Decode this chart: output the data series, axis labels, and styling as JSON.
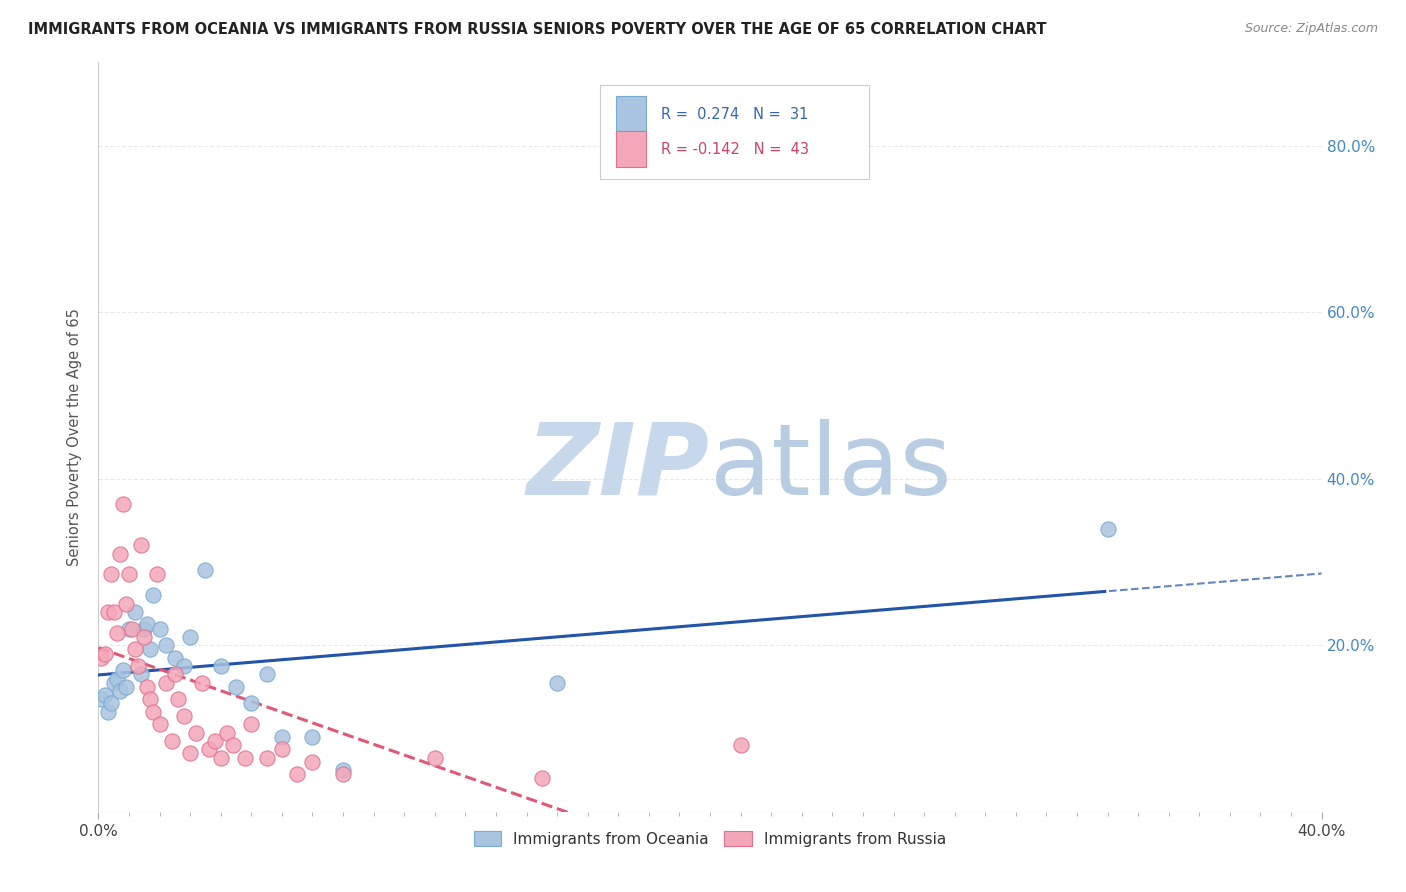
{
  "title": "IMMIGRANTS FROM OCEANIA VS IMMIGRANTS FROM RUSSIA SENIORS POVERTY OVER THE AGE OF 65 CORRELATION CHART",
  "source": "Source: ZipAtlas.com",
  "ylabel": "Seniors Poverty Over the Age of 65",
  "series": [
    {
      "name": "Immigrants from Oceania",
      "color": "#a8c4e0",
      "edge_color": "#7aaad0",
      "R": 0.274,
      "N": 31,
      "line_color": "#2255aa",
      "line_style": "-",
      "points": [
        [
          0.001,
          0.135
        ],
        [
          0.002,
          0.14
        ],
        [
          0.003,
          0.12
        ],
        [
          0.004,
          0.13
        ],
        [
          0.005,
          0.155
        ],
        [
          0.006,
          0.16
        ],
        [
          0.007,
          0.145
        ],
        [
          0.008,
          0.17
        ],
        [
          0.009,
          0.15
        ],
        [
          0.01,
          0.22
        ],
        [
          0.012,
          0.24
        ],
        [
          0.014,
          0.165
        ],
        [
          0.015,
          0.22
        ],
        [
          0.016,
          0.225
        ],
        [
          0.017,
          0.195
        ],
        [
          0.018,
          0.26
        ],
        [
          0.02,
          0.22
        ],
        [
          0.022,
          0.2
        ],
        [
          0.025,
          0.185
        ],
        [
          0.028,
          0.175
        ],
        [
          0.03,
          0.21
        ],
        [
          0.035,
          0.29
        ],
        [
          0.04,
          0.175
        ],
        [
          0.045,
          0.15
        ],
        [
          0.05,
          0.13
        ],
        [
          0.055,
          0.165
        ],
        [
          0.06,
          0.09
        ],
        [
          0.07,
          0.09
        ],
        [
          0.08,
          0.05
        ],
        [
          0.15,
          0.155
        ],
        [
          0.33,
          0.34
        ]
      ]
    },
    {
      "name": "Immigrants from Russia",
      "color": "#f4a7b9",
      "edge_color": "#e07090",
      "R": -0.142,
      "N": 43,
      "line_color": "#e05878",
      "line_style": "--",
      "points": [
        [
          0.001,
          0.185
        ],
        [
          0.002,
          0.19
        ],
        [
          0.003,
          0.24
        ],
        [
          0.004,
          0.285
        ],
        [
          0.005,
          0.24
        ],
        [
          0.006,
          0.215
        ],
        [
          0.007,
          0.31
        ],
        [
          0.008,
          0.37
        ],
        [
          0.009,
          0.25
        ],
        [
          0.01,
          0.285
        ],
        [
          0.011,
          0.22
        ],
        [
          0.012,
          0.195
        ],
        [
          0.013,
          0.175
        ],
        [
          0.014,
          0.32
        ],
        [
          0.015,
          0.21
        ],
        [
          0.016,
          0.15
        ],
        [
          0.017,
          0.135
        ],
        [
          0.018,
          0.12
        ],
        [
          0.019,
          0.285
        ],
        [
          0.02,
          0.105
        ],
        [
          0.022,
          0.155
        ],
        [
          0.024,
          0.085
        ],
        [
          0.025,
          0.165
        ],
        [
          0.026,
          0.135
        ],
        [
          0.028,
          0.115
        ],
        [
          0.03,
          0.07
        ],
        [
          0.032,
          0.095
        ],
        [
          0.034,
          0.155
        ],
        [
          0.036,
          0.075
        ],
        [
          0.038,
          0.085
        ],
        [
          0.04,
          0.065
        ],
        [
          0.042,
          0.095
        ],
        [
          0.044,
          0.08
        ],
        [
          0.048,
          0.065
        ],
        [
          0.05,
          0.105
        ],
        [
          0.055,
          0.065
        ],
        [
          0.06,
          0.075
        ],
        [
          0.065,
          0.045
        ],
        [
          0.07,
          0.06
        ],
        [
          0.08,
          0.045
        ],
        [
          0.11,
          0.065
        ],
        [
          0.145,
          0.04
        ],
        [
          0.21,
          0.08
        ]
      ]
    }
  ],
  "xlim": [
    0.0,
    0.4
  ],
  "ylim": [
    0.0,
    0.9
  ],
  "xticks_minor": 0.01,
  "xticks_major": [
    0.0,
    0.4
  ],
  "xtick_major_labels": [
    "0.0%",
    "40.0%"
  ],
  "yticks": [
    0.0,
    0.2,
    0.4,
    0.6,
    0.8
  ],
  "ytick_labels_right": [
    "",
    "20.0%",
    "40.0%",
    "60.0%",
    "80.0%"
  ],
  "grid_yticks": [
    0.2,
    0.4,
    0.6,
    0.8
  ],
  "watermark_zip_color": "#c8d8ec",
  "watermark_atlas_color": "#b8cce4",
  "background_color": "#ffffff",
  "grid_color": "#e8e8e8",
  "marker_size": 120,
  "legend_R_color_oceania": "#3366bb",
  "legend_R_color_russia": "#cc4466",
  "legend_N_color": "#3366bb"
}
